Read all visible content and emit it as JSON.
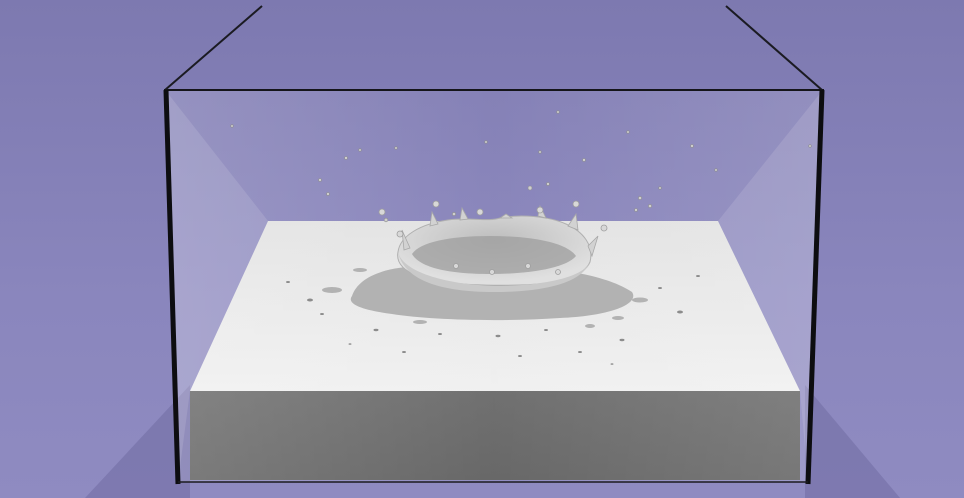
{
  "scene": {
    "colors": {
      "background": "#8783b8",
      "floor": "#7f7bb4",
      "liquid_top": "#e6e6e6",
      "liquid_side": "#6e6e6e",
      "glass_edge": "#0d0d10",
      "splash": "#d5d5d5",
      "shadow": "#9a9a9a"
    }
  }
}
